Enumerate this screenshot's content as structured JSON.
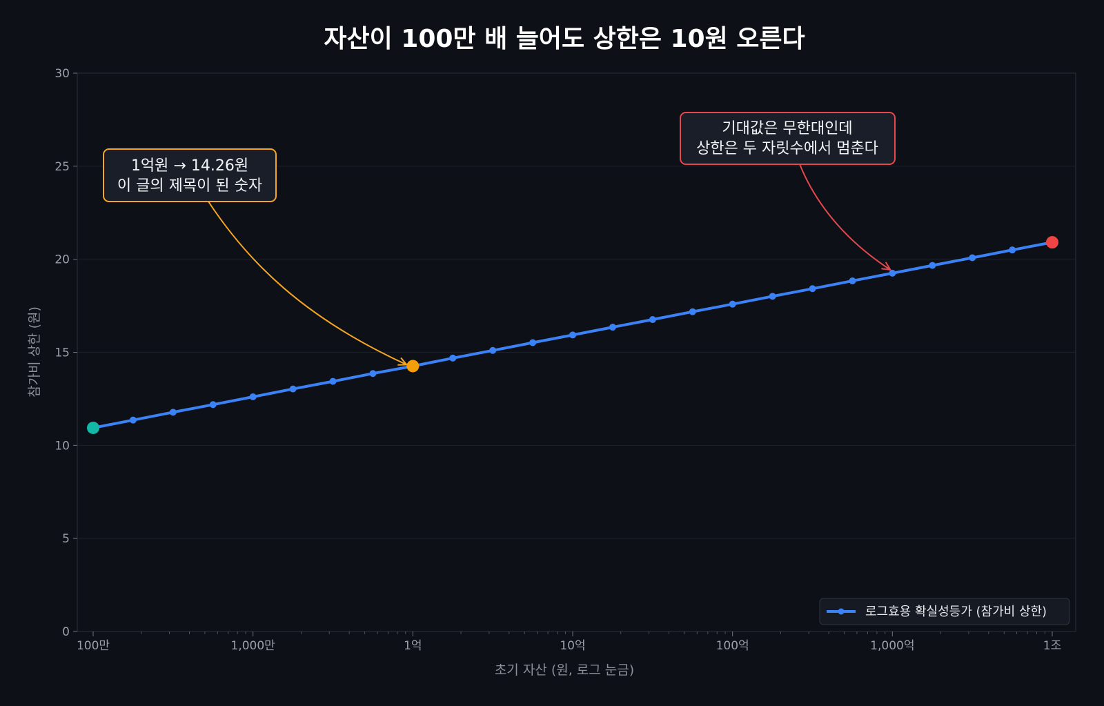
{
  "chart_data": {
    "type": "line",
    "title": "자산이 100만 배 늘어도 상한은 10원 오른다",
    "xlabel": "초기 자산 (원, 로그 눈금)",
    "ylabel": "참가비 상한 (원)",
    "x_scale": "log",
    "xlim": [
      1000000,
      1000000000000
    ],
    "ylim": [
      0,
      30
    ],
    "x_ticks": [
      {
        "value": 1000000,
        "label": "100만"
      },
      {
        "value": 10000000,
        "label": "1,000만"
      },
      {
        "value": 100000000,
        "label": "1억"
      },
      {
        "value": 1000000000,
        "label": "10억"
      },
      {
        "value": 10000000000,
        "label": "100억"
      },
      {
        "value": 100000000000,
        "label": "1,000억"
      },
      {
        "value": 1000000000000,
        "label": "1조"
      }
    ],
    "y_ticks": [
      {
        "value": 0,
        "label": "0"
      },
      {
        "value": 5,
        "label": "5"
      },
      {
        "value": 10,
        "label": "10"
      },
      {
        "value": 15,
        "label": "15"
      },
      {
        "value": 20,
        "label": "20"
      },
      {
        "value": 25,
        "label": "25"
      },
      {
        "value": 30,
        "label": "30"
      }
    ],
    "grid": "horizontal",
    "legend_position": "bottom-right",
    "series": [
      {
        "name": "로그효용 확실성등가 (참가비 상한)",
        "color": "#3b82f6",
        "x": [
          1000000,
          1778279,
          3162278,
          5623413,
          10000000,
          17782794,
          31622777,
          56234133,
          100000000,
          177827941,
          316227766,
          562341325,
          1000000000,
          1778279410,
          3162277660,
          5623413252,
          10000000000,
          17782794100,
          31622776602,
          56234132519,
          100000000000,
          177827941004,
          316227766017,
          562341325190,
          1000000000000
        ],
        "y": [
          10.94,
          11.36,
          11.78,
          12.19,
          12.61,
          13.03,
          13.44,
          13.86,
          14.26,
          14.69,
          15.1,
          15.52,
          15.93,
          16.35,
          16.76,
          17.18,
          17.59,
          18.01,
          18.42,
          18.84,
          19.25,
          19.67,
          20.08,
          20.5,
          20.91
        ]
      }
    ],
    "highlights": [
      {
        "x": 1000000,
        "y": 10.94,
        "color": "#14b8a6"
      },
      {
        "x": 100000000,
        "y": 14.26,
        "color": "#f59e0b"
      },
      {
        "x": 1000000000000,
        "y": 20.91,
        "color": "#ef4444"
      }
    ],
    "annotations": [
      {
        "lines": [
          "1억원 → 14.26원",
          "이 글의 제목이 된 숫자"
        ],
        "color": "#f5a524",
        "target_x": 100000000,
        "target_y": 14.26
      },
      {
        "lines": [
          "기대값은 무한대인데",
          "상한은 두 자릿수에서 멈춘다"
        ],
        "color": "#e5484d",
        "target_x": 100000000000,
        "target_y": 19.25
      }
    ]
  }
}
